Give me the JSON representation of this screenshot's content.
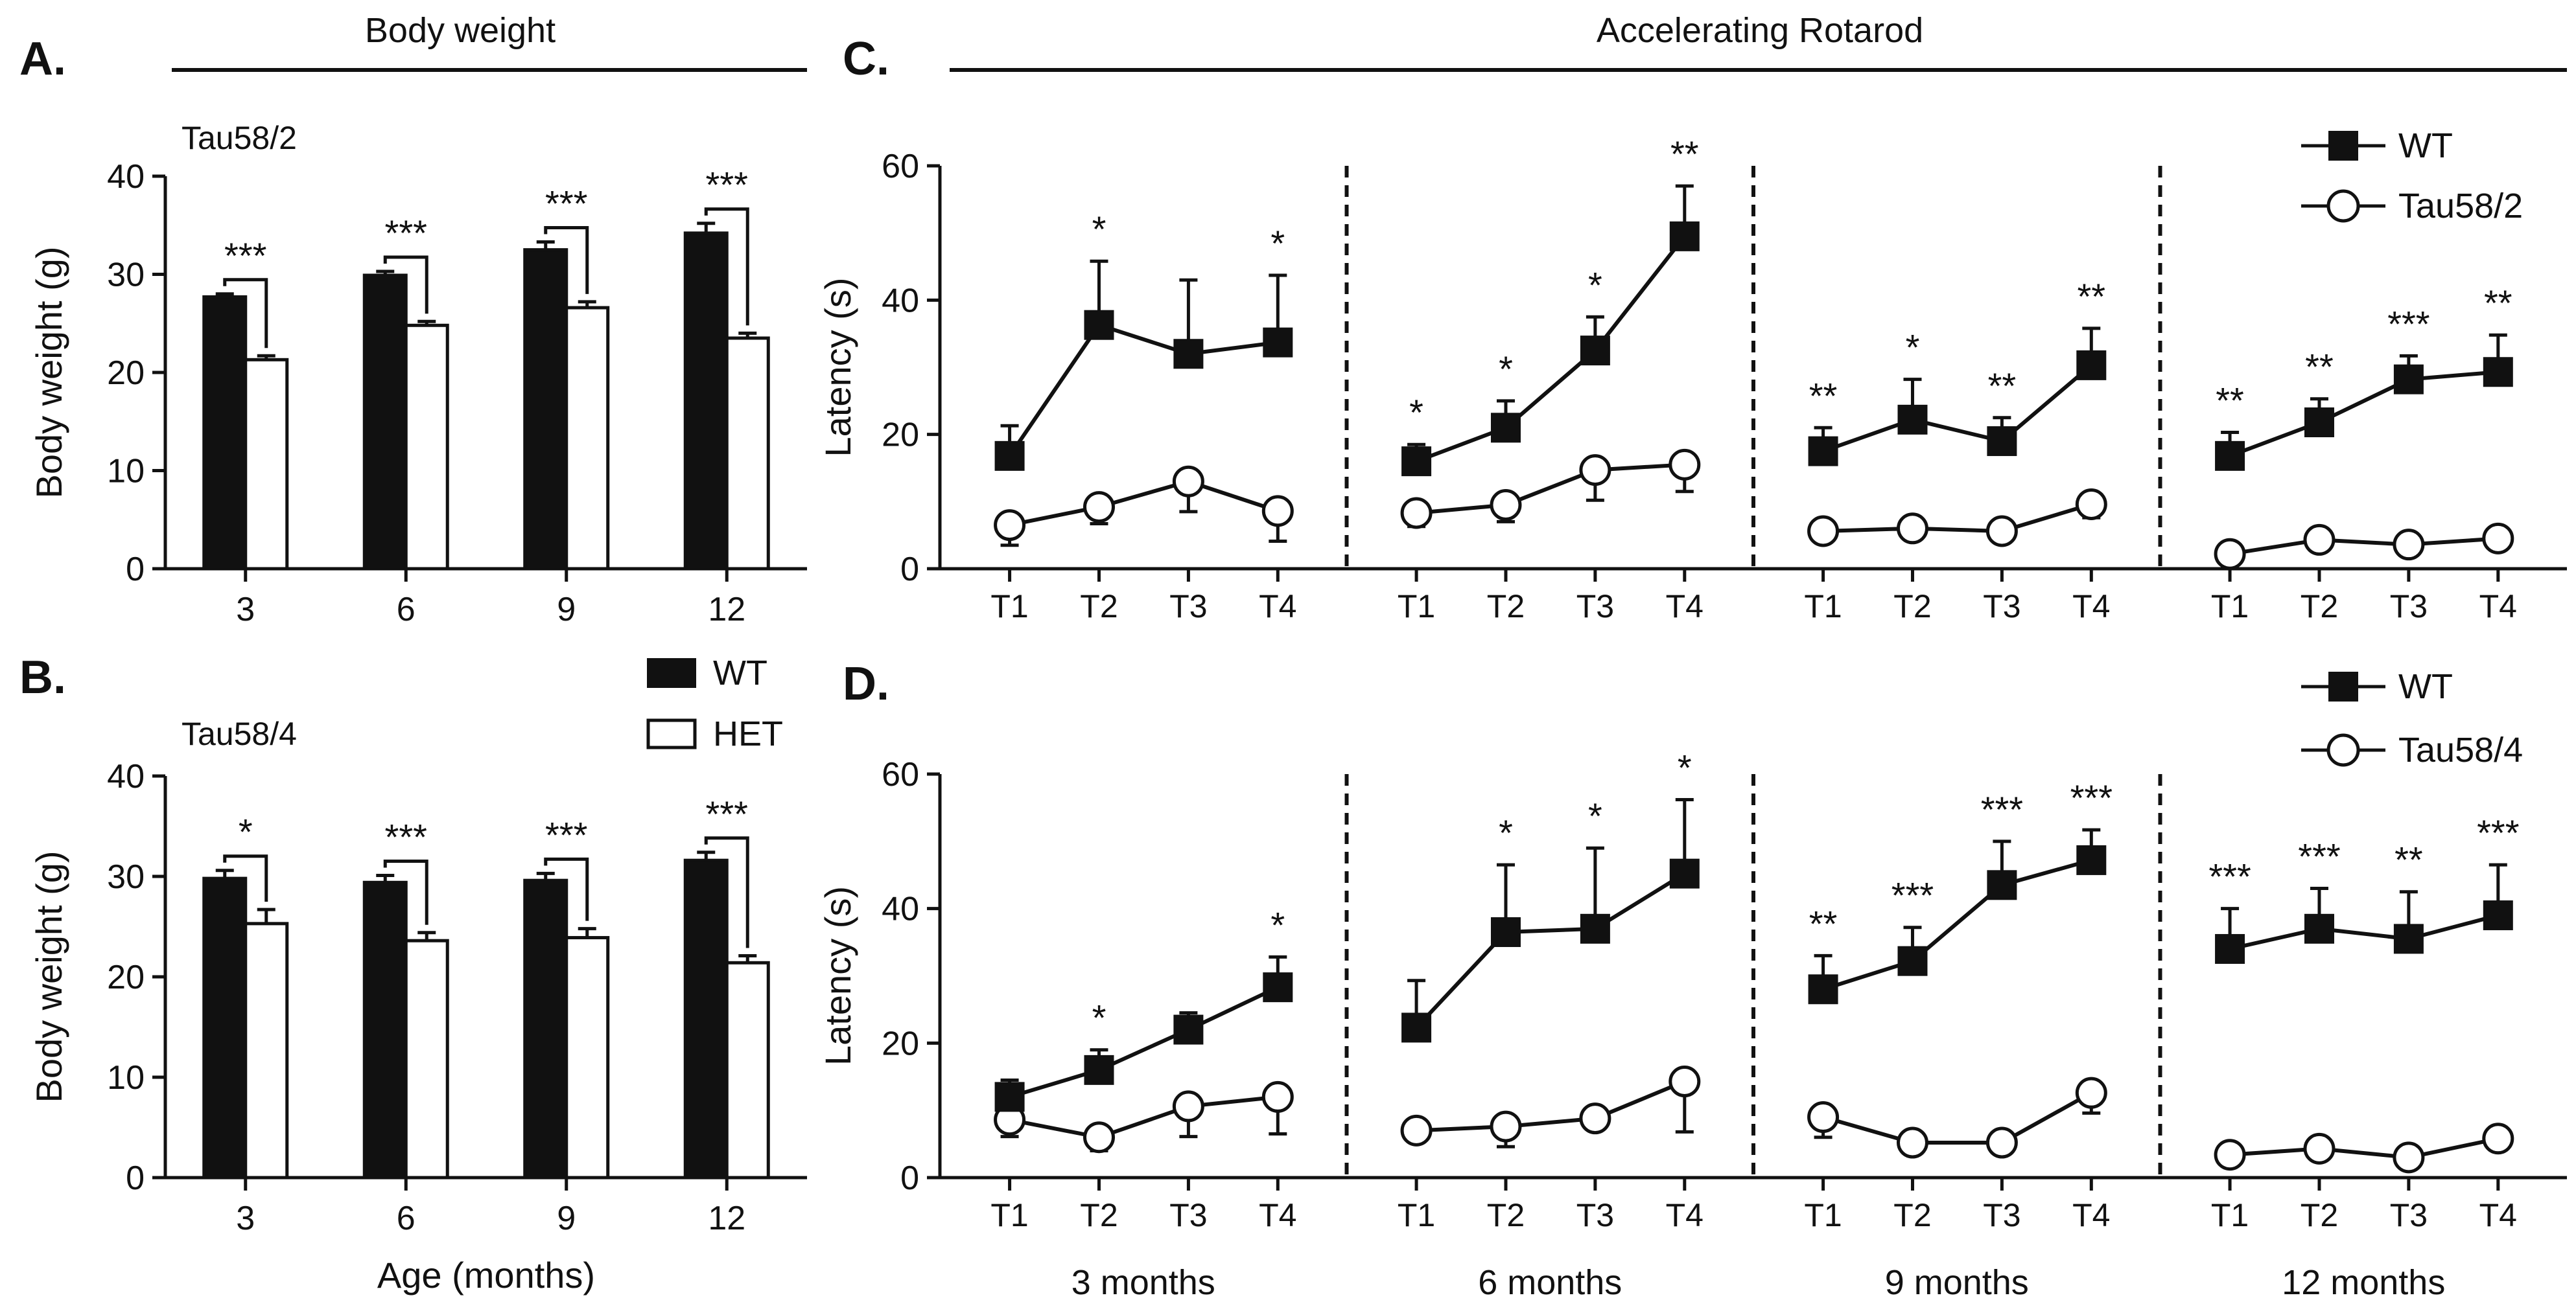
{
  "headers": {
    "body_weight": "Body weight",
    "rotarod": "Accelerating Rotarod"
  },
  "panel_labels": {
    "A": "A.",
    "B": "B.",
    "C": "C.",
    "D": "D."
  },
  "chart_data": [
    {
      "id": "A",
      "type": "bar",
      "strain": "Tau58/2",
      "ylabel": "Body weight (g)",
      "xlabel": "",
      "ylim": [
        0,
        40
      ],
      "yticks": [
        0,
        10,
        20,
        30,
        40
      ],
      "categories": [
        "3",
        "6",
        "9",
        "12"
      ],
      "series": [
        {
          "name": "WT",
          "values": [
            27.7,
            29.9,
            32.5,
            34.2
          ],
          "err": [
            0.3,
            0.4,
            0.8,
            1.0
          ]
        },
        {
          "name": "HET",
          "values": [
            21.3,
            24.8,
            26.6,
            23.5
          ],
          "err": [
            0.4,
            0.4,
            0.6,
            0.5
          ]
        }
      ],
      "significance": [
        "***",
        "***",
        "***",
        "***"
      ]
    },
    {
      "id": "B",
      "type": "bar",
      "strain": "Tau58/4",
      "ylabel": "Body weight (g)",
      "xlabel": "Age (months)",
      "ylim": [
        0,
        40
      ],
      "yticks": [
        0,
        10,
        20,
        30,
        40
      ],
      "categories": [
        "3",
        "6",
        "9",
        "12"
      ],
      "series": [
        {
          "name": "WT",
          "values": [
            29.8,
            29.4,
            29.6,
            31.6
          ],
          "err": [
            0.8,
            0.7,
            0.7,
            0.8
          ]
        },
        {
          "name": "HET",
          "values": [
            25.3,
            23.6,
            23.9,
            21.4
          ],
          "err": [
            1.4,
            0.8,
            0.9,
            0.7
          ]
        }
      ],
      "significance": [
        "*",
        "***",
        "***",
        "***"
      ],
      "legend": [
        "WT",
        "HET"
      ]
    },
    {
      "id": "C",
      "type": "line",
      "ylabel": "Latency (s)",
      "ylim": [
        0,
        60
      ],
      "yticks": [
        0,
        20,
        40,
        60
      ],
      "x": [
        "T1",
        "T2",
        "T3",
        "T4"
      ],
      "groups": [
        "3 months",
        "6 months",
        "9 months",
        "12 months"
      ],
      "legend": [
        "WT",
        "Tau58/2"
      ],
      "series": [
        {
          "name": "WT",
          "marker": "square",
          "values": [
            [
              16.8,
              36.3,
              32.0,
              33.7
            ],
            [
              16.0,
              21.0,
              32.5,
              49.5
            ],
            [
              17.5,
              22.2,
              19.0,
              30.3
            ],
            [
              16.8,
              21.8,
              28.2,
              29.3
            ]
          ],
          "err": [
            [
              4.5,
              9.5,
              11.0,
              10.0
            ],
            [
              2.5,
              4.0,
              5.0,
              7.5
            ],
            [
              3.5,
              6.0,
              3.5,
              5.5
            ],
            [
              3.5,
              3.5,
              3.5,
              5.5
            ]
          ]
        },
        {
          "name": "Tau58/2",
          "marker": "circle",
          "values": [
            [
              6.5,
              9.2,
              13.0,
              8.6
            ],
            [
              8.3,
              9.5,
              14.7,
              15.5
            ],
            [
              5.6,
              6.0,
              5.6,
              9.6
            ],
            [
              2.2,
              4.3,
              3.6,
              4.5
            ]
          ],
          "err": [
            [
              3.0,
              2.5,
              4.5,
              4.5
            ],
            [
              2.0,
              2.5,
              4.5,
              4.0
            ],
            [
              0.5,
              0.8,
              0.5,
              2.0
            ],
            [
              0.3,
              0.5,
              0.5,
              0.5
            ]
          ]
        }
      ],
      "significance": [
        [
          "",
          "*",
          "",
          "*"
        ],
        [
          "*",
          "*",
          "*",
          "**"
        ],
        [
          "**",
          "*",
          "**",
          "**"
        ],
        [
          "**",
          "**",
          "***",
          "**"
        ]
      ]
    },
    {
      "id": "D",
      "type": "line",
      "ylabel": "Latency (s)",
      "ylim": [
        0,
        60
      ],
      "yticks": [
        0,
        20,
        40,
        60
      ],
      "x": [
        "T1",
        "T2",
        "T3",
        "T4"
      ],
      "groups": [
        "3 months",
        "6 months",
        "9 months",
        "12 months"
      ],
      "legend": [
        "WT",
        "Tau58/4"
      ],
      "series": [
        {
          "name": "WT",
          "marker": "square",
          "values": [
            [
              12.0,
              16.0,
              22.0,
              28.3
            ],
            [
              22.3,
              36.5,
              37.0,
              45.2
            ],
            [
              28.0,
              32.2,
              43.5,
              47.2
            ],
            [
              34.0,
              37.0,
              35.5,
              39.0
            ]
          ],
          "err": [
            [
              2.5,
              3.0,
              2.5,
              4.5
            ],
            [
              7.0,
              10.0,
              12.0,
              11.0
            ],
            [
              5.0,
              5.0,
              6.5,
              4.5
            ],
            [
              6.0,
              6.0,
              7.0,
              7.5
            ]
          ]
        },
        {
          "name": "Tau58/4",
          "marker": "circle",
          "values": [
            [
              8.6,
              6.0,
              10.6,
              12.0
            ],
            [
              7.0,
              7.6,
              8.8,
              14.3
            ],
            [
              9.0,
              5.2,
              5.2,
              12.6
            ],
            [
              3.4,
              4.3,
              3.0,
              5.8
            ]
          ],
          "err": [
            [
              2.5,
              2.0,
              4.5,
              5.5
            ],
            [
              1.5,
              3.0,
              1.5,
              7.5
            ],
            [
              3.0,
              0.5,
              0.5,
              3.0
            ],
            [
              0.5,
              1.5,
              0.5,
              1.5
            ]
          ]
        }
      ],
      "significance": [
        [
          "",
          "*",
          "",
          "*"
        ],
        [
          "",
          "*",
          "*",
          "*"
        ],
        [
          "**",
          "***",
          "***",
          "***"
        ],
        [
          "***",
          "***",
          "**",
          "***"
        ]
      ]
    }
  ]
}
